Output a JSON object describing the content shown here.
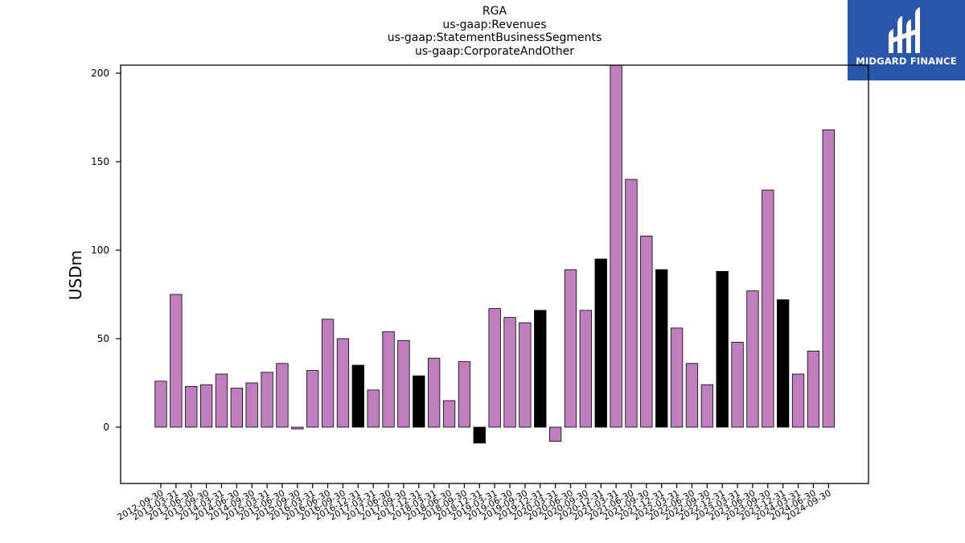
{
  "title_lines": [
    "RGA",
    "us-gaap:Revenues",
    "us-gaap:StatementBusinessSegments",
    "us-gaap:CorporateAndOther"
  ],
  "logo": {
    "text": "MIDGARD FINANCE",
    "bg_color": "#2a57ab",
    "text_color": "#ffffff"
  },
  "chart_data": {
    "type": "bar",
    "ylabel": "USDm",
    "ylim": [
      -32,
      205
    ],
    "yticks": [
      0,
      50,
      100,
      150,
      200
    ],
    "bar_color": "#bf7fbf",
    "highlight_color": "#000000",
    "grid": false,
    "categories": [
      "2012-09-30",
      "2013-03-31",
      "2013-06-30",
      "2013-09-30",
      "2014-03-31",
      "2014-06-30",
      "2014-09-30",
      "2015-03-31",
      "2015-06-30",
      "2015-09-30",
      "2016-03-31",
      "2016-06-30",
      "2016-09-30",
      "2016-12-31",
      "2017-03-31",
      "2017-06-30",
      "2017-09-30",
      "2017-12-31",
      "2018-03-31",
      "2018-06-30",
      "2018-09-30",
      "2018-12-31",
      "2019-03-31",
      "2019-06-30",
      "2019-09-30",
      "2019-12-31",
      "2020-03-31",
      "2020-06-30",
      "2020-09-30",
      "2020-12-31",
      "2021-03-31",
      "2021-06-30",
      "2021-09-30",
      "2021-12-31",
      "2022-03-31",
      "2022-06-30",
      "2022-09-30",
      "2022-12-31",
      "2023-03-31",
      "2023-06-30",
      "2023-09-30",
      "2023-12-31",
      "2024-03-31",
      "2024-06-30",
      "2024-09-30"
    ],
    "values": [
      26,
      75,
      23,
      24,
      30,
      22,
      25,
      31,
      36,
      -1,
      32,
      61,
      50,
      35,
      21,
      54,
      49,
      29,
      39,
      15,
      37,
      -9,
      67,
      62,
      59,
      66,
      -8,
      89,
      66,
      95,
      205,
      140,
      108,
      89,
      56,
      36,
      24,
      88,
      48,
      77,
      134,
      72,
      30,
      43,
      168
    ],
    "highlighted": [
      false,
      false,
      false,
      false,
      false,
      false,
      false,
      false,
      false,
      false,
      false,
      false,
      false,
      true,
      false,
      false,
      false,
      true,
      false,
      false,
      false,
      true,
      false,
      false,
      false,
      true,
      false,
      false,
      false,
      true,
      false,
      false,
      false,
      true,
      false,
      false,
      false,
      true,
      false,
      false,
      false,
      true,
      false,
      false,
      false
    ]
  }
}
